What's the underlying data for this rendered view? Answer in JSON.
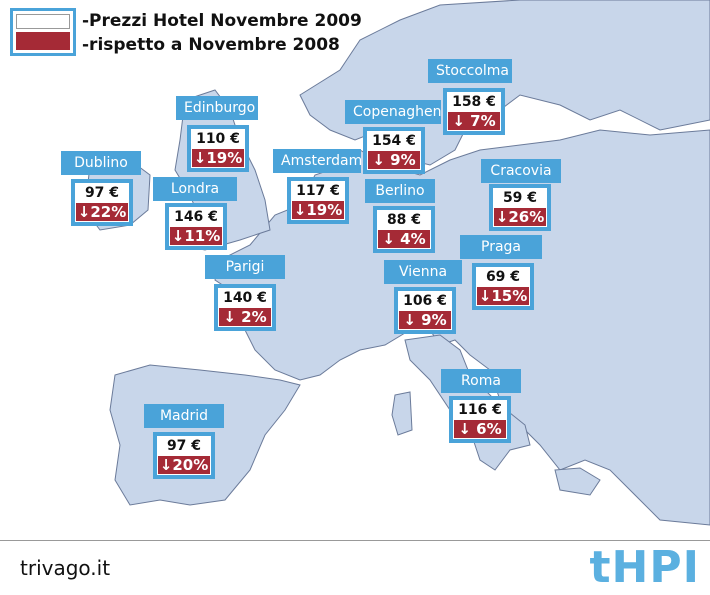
{
  "legend": {
    "line1": "-Prezzi Hotel Novembre 2009",
    "line2": "-rispetto a Novembre 2008"
  },
  "colors": {
    "land": "#c8d6ea",
    "sea": "#ffffff",
    "border": "#6b7b9a",
    "label_bg": "#4aa3d9",
    "change_bg": "#a52a36"
  },
  "cities": [
    {
      "name": "Stoccolma",
      "price": "158 €",
      "change": "↓ 7%"
    },
    {
      "name": "Edinburgo",
      "price": "110 €",
      "change": "↓19%"
    },
    {
      "name": "Copenaghen",
      "price": "154 €",
      "change": "↓ 9%"
    },
    {
      "name": "Dublino",
      "price": "97 €",
      "change": "↓22%"
    },
    {
      "name": "Amsterdam",
      "price": "117 €",
      "change": "↓19%"
    },
    {
      "name": "Cracovia",
      "price": "59 €",
      "change": "↓26%"
    },
    {
      "name": "Londra",
      "price": "146 €",
      "change": "↓11%"
    },
    {
      "name": "Berlino",
      "price": "88 €",
      "change": "↓ 4%"
    },
    {
      "name": "Praga",
      "price": "69 €",
      "change": "↓15%"
    },
    {
      "name": "Parigi",
      "price": "140 €",
      "change": "↓ 2%"
    },
    {
      "name": "Vienna",
      "price": "106 €",
      "change": "↓ 9%"
    },
    {
      "name": "Roma",
      "price": "116 €",
      "change": "↓ 6%"
    },
    {
      "name": "Madrid",
      "price": "97 €",
      "change": "↓20%"
    }
  ],
  "footer": {
    "source": "trivago.it",
    "logo": "tHPI"
  }
}
